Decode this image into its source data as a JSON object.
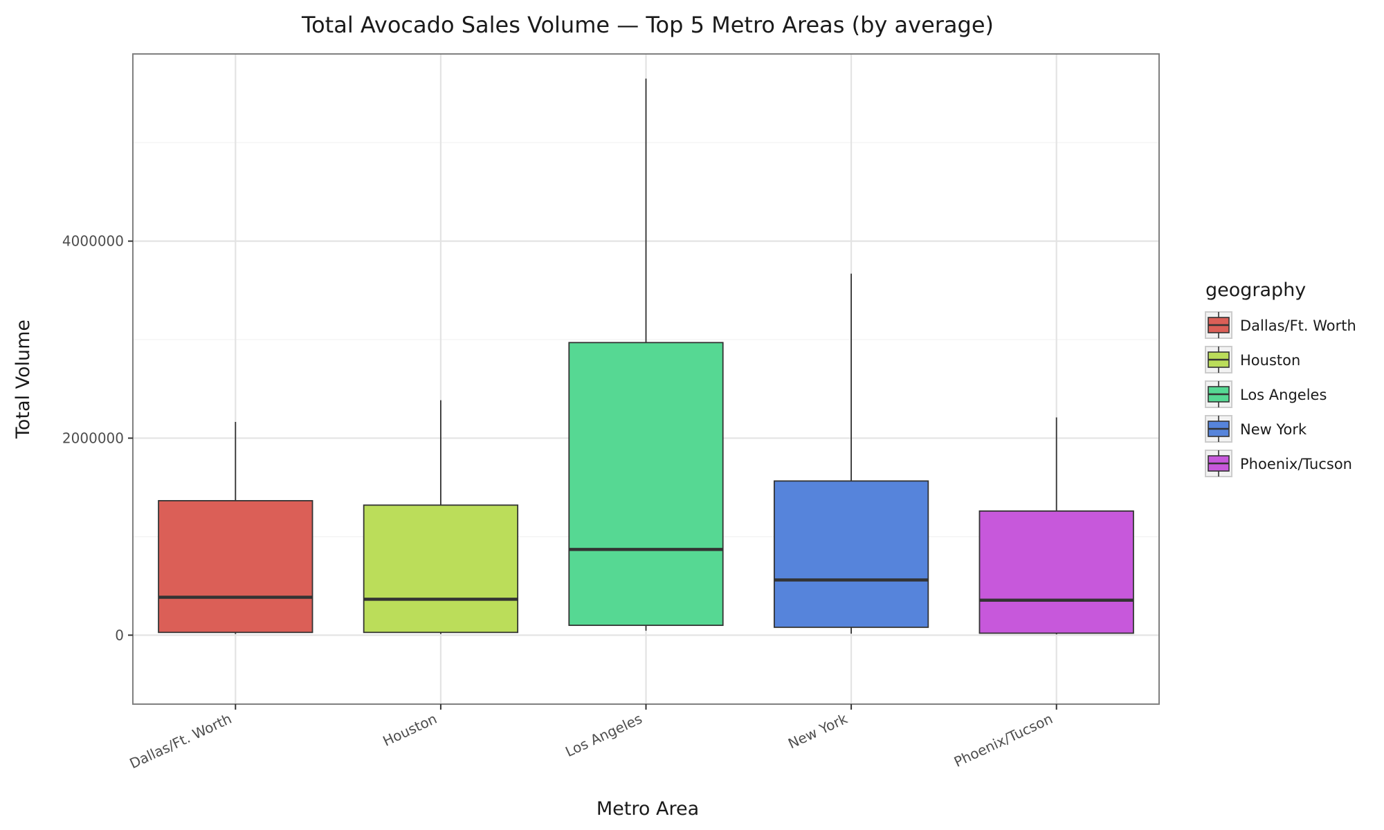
{
  "chart_data": {
    "type": "boxplot",
    "title": "Total Avocado Sales Volume — Top 5 Metro Areas (by average)",
    "xlabel": "Metro Area",
    "ylabel": "Total Volume",
    "ylim": [
      -700000,
      5900000
    ],
    "yticks": [
      0,
      2000000,
      4000000
    ],
    "ytick_labels": [
      "0",
      "2000000",
      "4000000"
    ],
    "grid": true,
    "legend": {
      "title": "geography",
      "placement": "right"
    },
    "categories": [
      "Dallas/Ft. Worth",
      "Houston",
      "Los Angeles",
      "New York",
      "Phoenix/Tucson"
    ],
    "series": [
      {
        "name": "Dallas/Ft. Worth",
        "color": "#DB5F57",
        "whisker_low": 12000,
        "q1": 28000,
        "median": 385000,
        "q3": 1365000,
        "whisker_high": 2165000
      },
      {
        "name": "Houston",
        "color": "#BBDD5A",
        "whisker_low": 12000,
        "q1": 28000,
        "median": 365000,
        "q3": 1320000,
        "whisker_high": 2385000
      },
      {
        "name": "Los Angeles",
        "color": "#56D893",
        "whisker_low": 45000,
        "q1": 100000,
        "median": 870000,
        "q3": 2970000,
        "whisker_high": 5650000
      },
      {
        "name": "New York",
        "color": "#5684DB",
        "whisker_low": 15000,
        "q1": 80000,
        "median": 560000,
        "q3": 1565000,
        "whisker_high": 3670000
      },
      {
        "name": "Phoenix/Tucson",
        "color": "#C758DB",
        "whisker_low": 8000,
        "q1": 20000,
        "median": 355000,
        "q3": 1260000,
        "whisker_high": 2210000
      }
    ]
  }
}
